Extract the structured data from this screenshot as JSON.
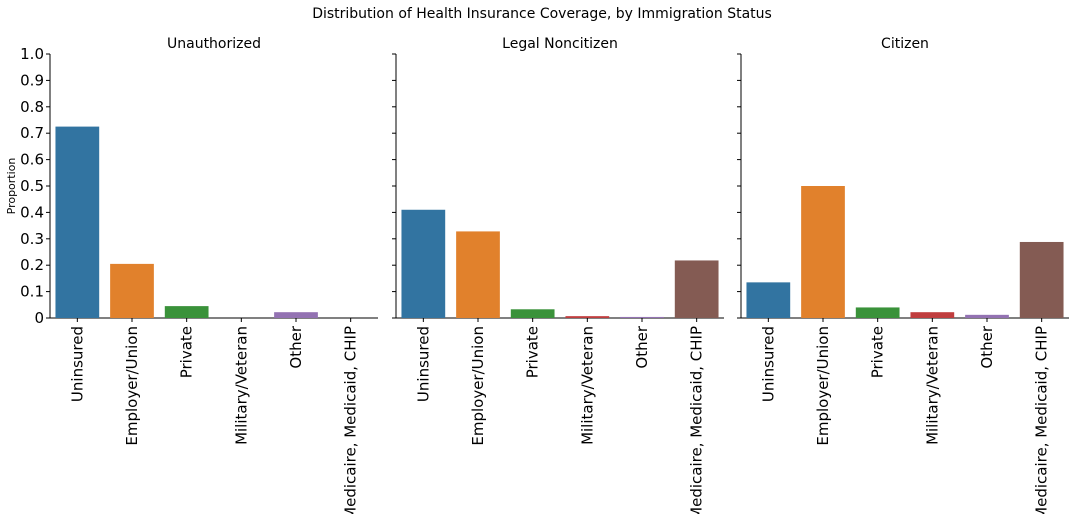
{
  "chart_data": {
    "type": "bar",
    "title": "Distribution of Health Insurance Coverage, by Immigration Status",
    "ylabel": "Proportion",
    "ylim": [
      0,
      1.0
    ],
    "yticks": [
      "0",
      "0.1",
      "0.2",
      "0.3",
      "0.4",
      "0.5",
      "0.6",
      "0.7",
      "0.8",
      "0.9",
      "1.0"
    ],
    "categories": [
      "Uninsured",
      "Employer/Union",
      "Private",
      "Military/Veteran",
      "Other",
      "Medicaire, Medicaid, CHIP"
    ],
    "colors": [
      "#3274a1",
      "#e1812c",
      "#3a923a",
      "#c03d3e",
      "#9372b2",
      "#845b53"
    ],
    "grid": false,
    "panels": [
      {
        "title": "Unauthorized",
        "values": [
          0.725,
          0.205,
          0.045,
          0.0,
          0.022,
          0.0
        ]
      },
      {
        "title": "Legal Noncitizen",
        "values": [
          0.41,
          0.328,
          0.033,
          0.007,
          0.004,
          0.218
        ]
      },
      {
        "title": "Citizen",
        "values": [
          0.135,
          0.5,
          0.04,
          0.022,
          0.012,
          0.288
        ]
      }
    ]
  }
}
